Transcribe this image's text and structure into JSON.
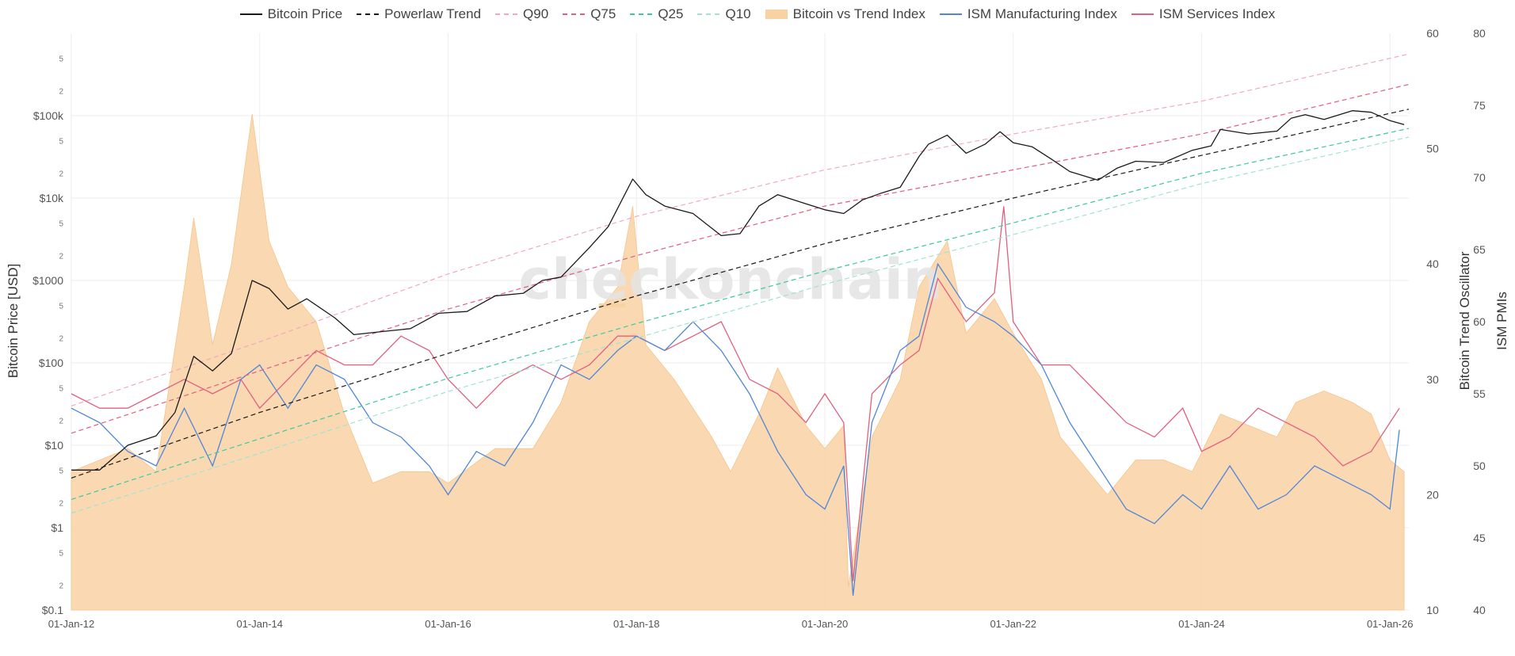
{
  "legend": [
    {
      "name": "Bitcoin Price",
      "color": "#1a1a1a",
      "style": "solid"
    },
    {
      "name": "Powerlaw Trend",
      "color": "#1a1a1a",
      "style": "dash"
    },
    {
      "name": "Q90",
      "color": "#f2a9bd",
      "style": "dash"
    },
    {
      "name": "Q75",
      "color": "#e0607e",
      "style": "dash"
    },
    {
      "name": "Q25",
      "color": "#3cc9a0",
      "style": "dash"
    },
    {
      "name": "Q10",
      "color": "#9fe3d4",
      "style": "dash"
    },
    {
      "name": "Bitcoin vs Trend Index",
      "color": "#f9d2a4",
      "style": "area"
    },
    {
      "name": "ISM Manufacturing Index",
      "color": "#4f86d8",
      "style": "solid"
    },
    {
      "name": "ISM Services Index",
      "color": "#e0607e",
      "style": "solid"
    }
  ],
  "watermark": "checkonchain",
  "chart_data": {
    "type": "line",
    "xlabel": "",
    "ylabel_left": "Bitcoin Price [USD]",
    "ylabel_right1": "Bitcoin Trend Oscillator",
    "ylabel_right2": "ISM PMIs",
    "x_range": [
      2012.0,
      2026.2
    ],
    "x_ticks": [
      2012,
      2014,
      2016,
      2018,
      2020,
      2022,
      2024,
      2026
    ],
    "x_tick_labels": [
      "01-Jan-12",
      "01-Jan-14",
      "01-Jan-16",
      "01-Jan-18",
      "01-Jan-20",
      "01-Jan-22",
      "01-Jan-24",
      "01-Jan-26"
    ],
    "y_left": {
      "scale": "log",
      "range": [
        0.1,
        1000000
      ],
      "major_ticks": [
        0.1,
        1,
        10,
        100,
        1000,
        10000,
        100000
      ],
      "major_labels": [
        "$0.1",
        "$1",
        "$10",
        "$100",
        "$1000",
        "$10k",
        "$100k"
      ],
      "minor_ticks": [
        0.2,
        0.5,
        2,
        5,
        20,
        50,
        200,
        500,
        2000,
        5000,
        20000,
        50000,
        200000,
        500000
      ],
      "minor_labels": [
        "2",
        "5",
        "2",
        "5",
        "2",
        "5",
        "2",
        "5",
        "2",
        "5",
        "2",
        "5",
        "2",
        "5"
      ]
    },
    "y_right1": {
      "range": [
        10,
        60
      ],
      "ticks": [
        10,
        20,
        30,
        40,
        50,
        60
      ],
      "tick_labels": [
        "10",
        "20",
        "30",
        "40",
        "50",
        "60"
      ]
    },
    "y_right2": {
      "range": [
        40,
        80
      ],
      "ticks": [
        40,
        45,
        50,
        55,
        60,
        65,
        70,
        75,
        80
      ],
      "tick_labels": [
        "40",
        "45",
        "50",
        "55",
        "60",
        "65",
        "70",
        "75",
        "80"
      ]
    },
    "trend_lines": [
      {
        "name": "Powerlaw Trend",
        "color": "#1a1a1a",
        "x": [
          2012.0,
          2014.0,
          2016.0,
          2018.0,
          2020.0,
          2022.0,
          2024.0,
          2026.2
        ],
        "y": [
          4,
          25,
          130,
          650,
          2800,
          10000,
          33000,
          120000
        ]
      },
      {
        "name": "Q90",
        "color": "#f2a9bd",
        "x": [
          2012.0,
          2014.0,
          2016.0,
          2018.0,
          2020.0,
          2022.0,
          2024.0,
          2026.2
        ],
        "y": [
          30,
          180,
          1200,
          6000,
          22000,
          60000,
          150000,
          560000
        ]
      },
      {
        "name": "Q75",
        "color": "#e0607e",
        "x": [
          2012.0,
          2014.0,
          2016.0,
          2018.0,
          2020.0,
          2022.0,
          2024.0,
          2026.2
        ],
        "y": [
          14,
          80,
          450,
          2000,
          8000,
          22000,
          60000,
          240000
        ]
      },
      {
        "name": "Q25",
        "color": "#3cc9a0",
        "x": [
          2012.0,
          2014.0,
          2016.0,
          2018.0,
          2020.0,
          2022.0,
          2024.0,
          2026.2
        ],
        "y": [
          2.2,
          12,
          65,
          300,
          1300,
          5000,
          20000,
          70000
        ]
      },
      {
        "name": "Q10",
        "color": "#9fe3d4",
        "x": [
          2012.0,
          2014.0,
          2016.0,
          2018.0,
          2020.0,
          2022.0,
          2024.0,
          2026.2
        ],
        "y": [
          1.5,
          8,
          45,
          200,
          900,
          3600,
          15000,
          55000
        ]
      }
    ],
    "bitcoin_price": {
      "name": "Bitcoin Price",
      "color": "#1a1a1a",
      "x": [
        2012.0,
        2012.3,
        2012.6,
        2012.9,
        2013.1,
        2013.3,
        2013.5,
        2013.7,
        2013.92,
        2014.1,
        2014.3,
        2014.5,
        2014.8,
        2015.0,
        2015.3,
        2015.6,
        2015.9,
        2016.2,
        2016.5,
        2016.8,
        2017.0,
        2017.2,
        2017.5,
        2017.7,
        2017.96,
        2018.1,
        2018.3,
        2018.6,
        2018.9,
        2019.1,
        2019.3,
        2019.5,
        2019.8,
        2020.0,
        2020.2,
        2020.4,
        2020.6,
        2020.8,
        2021.0,
        2021.1,
        2021.3,
        2021.5,
        2021.7,
        2021.86,
        2022.0,
        2022.2,
        2022.4,
        2022.6,
        2022.9,
        2023.1,
        2023.3,
        2023.6,
        2023.9,
        2024.1,
        2024.2,
        2024.5,
        2024.8,
        2024.95,
        2025.1,
        2025.3,
        2025.6,
        2025.8,
        2026.0,
        2026.15
      ],
      "y": [
        5,
        5,
        10,
        13,
        25,
        120,
        80,
        130,
        1000,
        800,
        450,
        600,
        350,
        220,
        240,
        260,
        400,
        420,
        650,
        700,
        1000,
        1100,
        2500,
        4500,
        17000,
        11000,
        8000,
        6500,
        3500,
        3700,
        8000,
        11000,
        8500,
        7200,
        6500,
        9500,
        11500,
        13500,
        32000,
        45000,
        58000,
        35000,
        45000,
        64000,
        47000,
        42000,
        30000,
        21000,
        16500,
        23000,
        28000,
        27000,
        38000,
        43000,
        68000,
        60000,
        65000,
        93000,
        103000,
        90000,
        115000,
        110000,
        87000,
        78000
      ]
    },
    "trend_oscillator": {
      "name": "Bitcoin vs Trend Index",
      "color": "#f9d2a4",
      "x": [
        2012.0,
        2012.3,
        2012.6,
        2012.9,
        2013.2,
        2013.3,
        2013.5,
        2013.7,
        2013.92,
        2014.1,
        2014.3,
        2014.6,
        2014.9,
        2015.2,
        2015.5,
        2015.8,
        2016.0,
        2016.5,
        2016.9,
        2017.2,
        2017.5,
        2017.8,
        2017.96,
        2018.1,
        2018.4,
        2018.8,
        2019.0,
        2019.3,
        2019.5,
        2019.8,
        2020.0,
        2020.2,
        2020.25,
        2020.5,
        2020.8,
        2021.0,
        2021.3,
        2021.5,
        2021.8,
        2022.0,
        2022.3,
        2022.5,
        2022.8,
        2023.0,
        2023.3,
        2023.6,
        2023.9,
        2024.2,
        2024.5,
        2024.8,
        2025.0,
        2025.3,
        2025.6,
        2025.8,
        2026.0,
        2026.15
      ],
      "y": [
        22,
        23,
        24,
        22,
        38,
        44,
        33,
        40,
        53,
        42,
        38,
        35,
        27,
        21,
        22,
        22,
        21,
        24,
        24,
        28,
        35,
        38,
        45,
        33,
        30,
        25,
        22,
        27,
        31,
        26,
        24,
        26,
        12,
        25,
        30,
        38,
        42,
        34,
        37,
        34,
        30,
        25,
        22,
        20,
        23,
        23,
        22,
        27,
        26,
        25,
        28,
        29,
        28,
        27,
        23,
        22
      ]
    },
    "ism_manufacturing": {
      "name": "ISM Manufacturing Index",
      "color": "#4f86d8",
      "x": [
        2012.0,
        2012.3,
        2012.6,
        2012.9,
        2013.2,
        2013.5,
        2013.8,
        2014.0,
        2014.3,
        2014.6,
        2014.9,
        2015.2,
        2015.5,
        2015.8,
        2016.0,
        2016.3,
        2016.6,
        2016.9,
        2017.2,
        2017.5,
        2017.8,
        2018.0,
        2018.3,
        2018.6,
        2018.9,
        2019.2,
        2019.5,
        2019.8,
        2020.0,
        2020.2,
        2020.3,
        2020.5,
        2020.8,
        2021.0,
        2021.2,
        2021.5,
        2021.8,
        2022.0,
        2022.3,
        2022.6,
        2022.9,
        2023.2,
        2023.5,
        2023.8,
        2024.0,
        2024.3,
        2024.6,
        2024.9,
        2025.2,
        2025.5,
        2025.8,
        2026.0,
        2026.1
      ],
      "y": [
        54,
        53,
        51,
        50,
        54,
        50,
        56,
        57,
        54,
        57,
        56,
        53,
        52,
        50,
        48,
        51,
        50,
        53,
        57,
        56,
        58,
        59,
        58,
        60,
        58,
        55,
        51,
        48,
        47,
        50,
        41,
        53,
        58,
        59,
        64,
        61,
        60,
        59,
        57,
        53,
        50,
        47,
        46,
        48,
        47,
        50,
        47,
        48,
        50,
        49,
        48,
        47,
        52.5
      ]
    },
    "ism_services": {
      "name": "ISM Services Index",
      "color": "#e0607e",
      "x": [
        2012.0,
        2012.3,
        2012.6,
        2012.9,
        2013.2,
        2013.5,
        2013.8,
        2014.0,
        2014.3,
        2014.6,
        2014.9,
        2015.2,
        2015.5,
        2015.8,
        2016.0,
        2016.3,
        2016.6,
        2016.9,
        2017.2,
        2017.5,
        2017.8,
        2018.0,
        2018.3,
        2018.6,
        2018.9,
        2019.2,
        2019.5,
        2019.8,
        2020.0,
        2020.2,
        2020.3,
        2020.5,
        2020.8,
        2021.0,
        2021.2,
        2021.5,
        2021.8,
        2021.9,
        2022.0,
        2022.3,
        2022.6,
        2022.9,
        2023.2,
        2023.5,
        2023.8,
        2024.0,
        2024.3,
        2024.6,
        2024.9,
        2025.2,
        2025.5,
        2025.8,
        2026.0,
        2026.1
      ],
      "y": [
        55,
        54,
        54,
        55,
        56,
        55,
        56,
        54,
        56,
        58,
        57,
        57,
        59,
        58,
        56,
        54,
        56,
        57,
        56,
        57,
        59,
        59,
        58,
        59,
        60,
        56,
        55,
        53,
        55,
        53,
        42,
        55,
        57,
        58,
        63,
        60,
        62,
        68,
        60,
        57,
        57,
        55,
        53,
        52,
        54,
        51,
        52,
        54,
        53,
        52,
        50,
        51,
        53,
        54
      ]
    }
  },
  "colors": {
    "grid": "#eeeeee",
    "axis_text": "#555555",
    "watermark": "#e3e3e3",
    "watermark_accent": "#f9d2a4"
  }
}
